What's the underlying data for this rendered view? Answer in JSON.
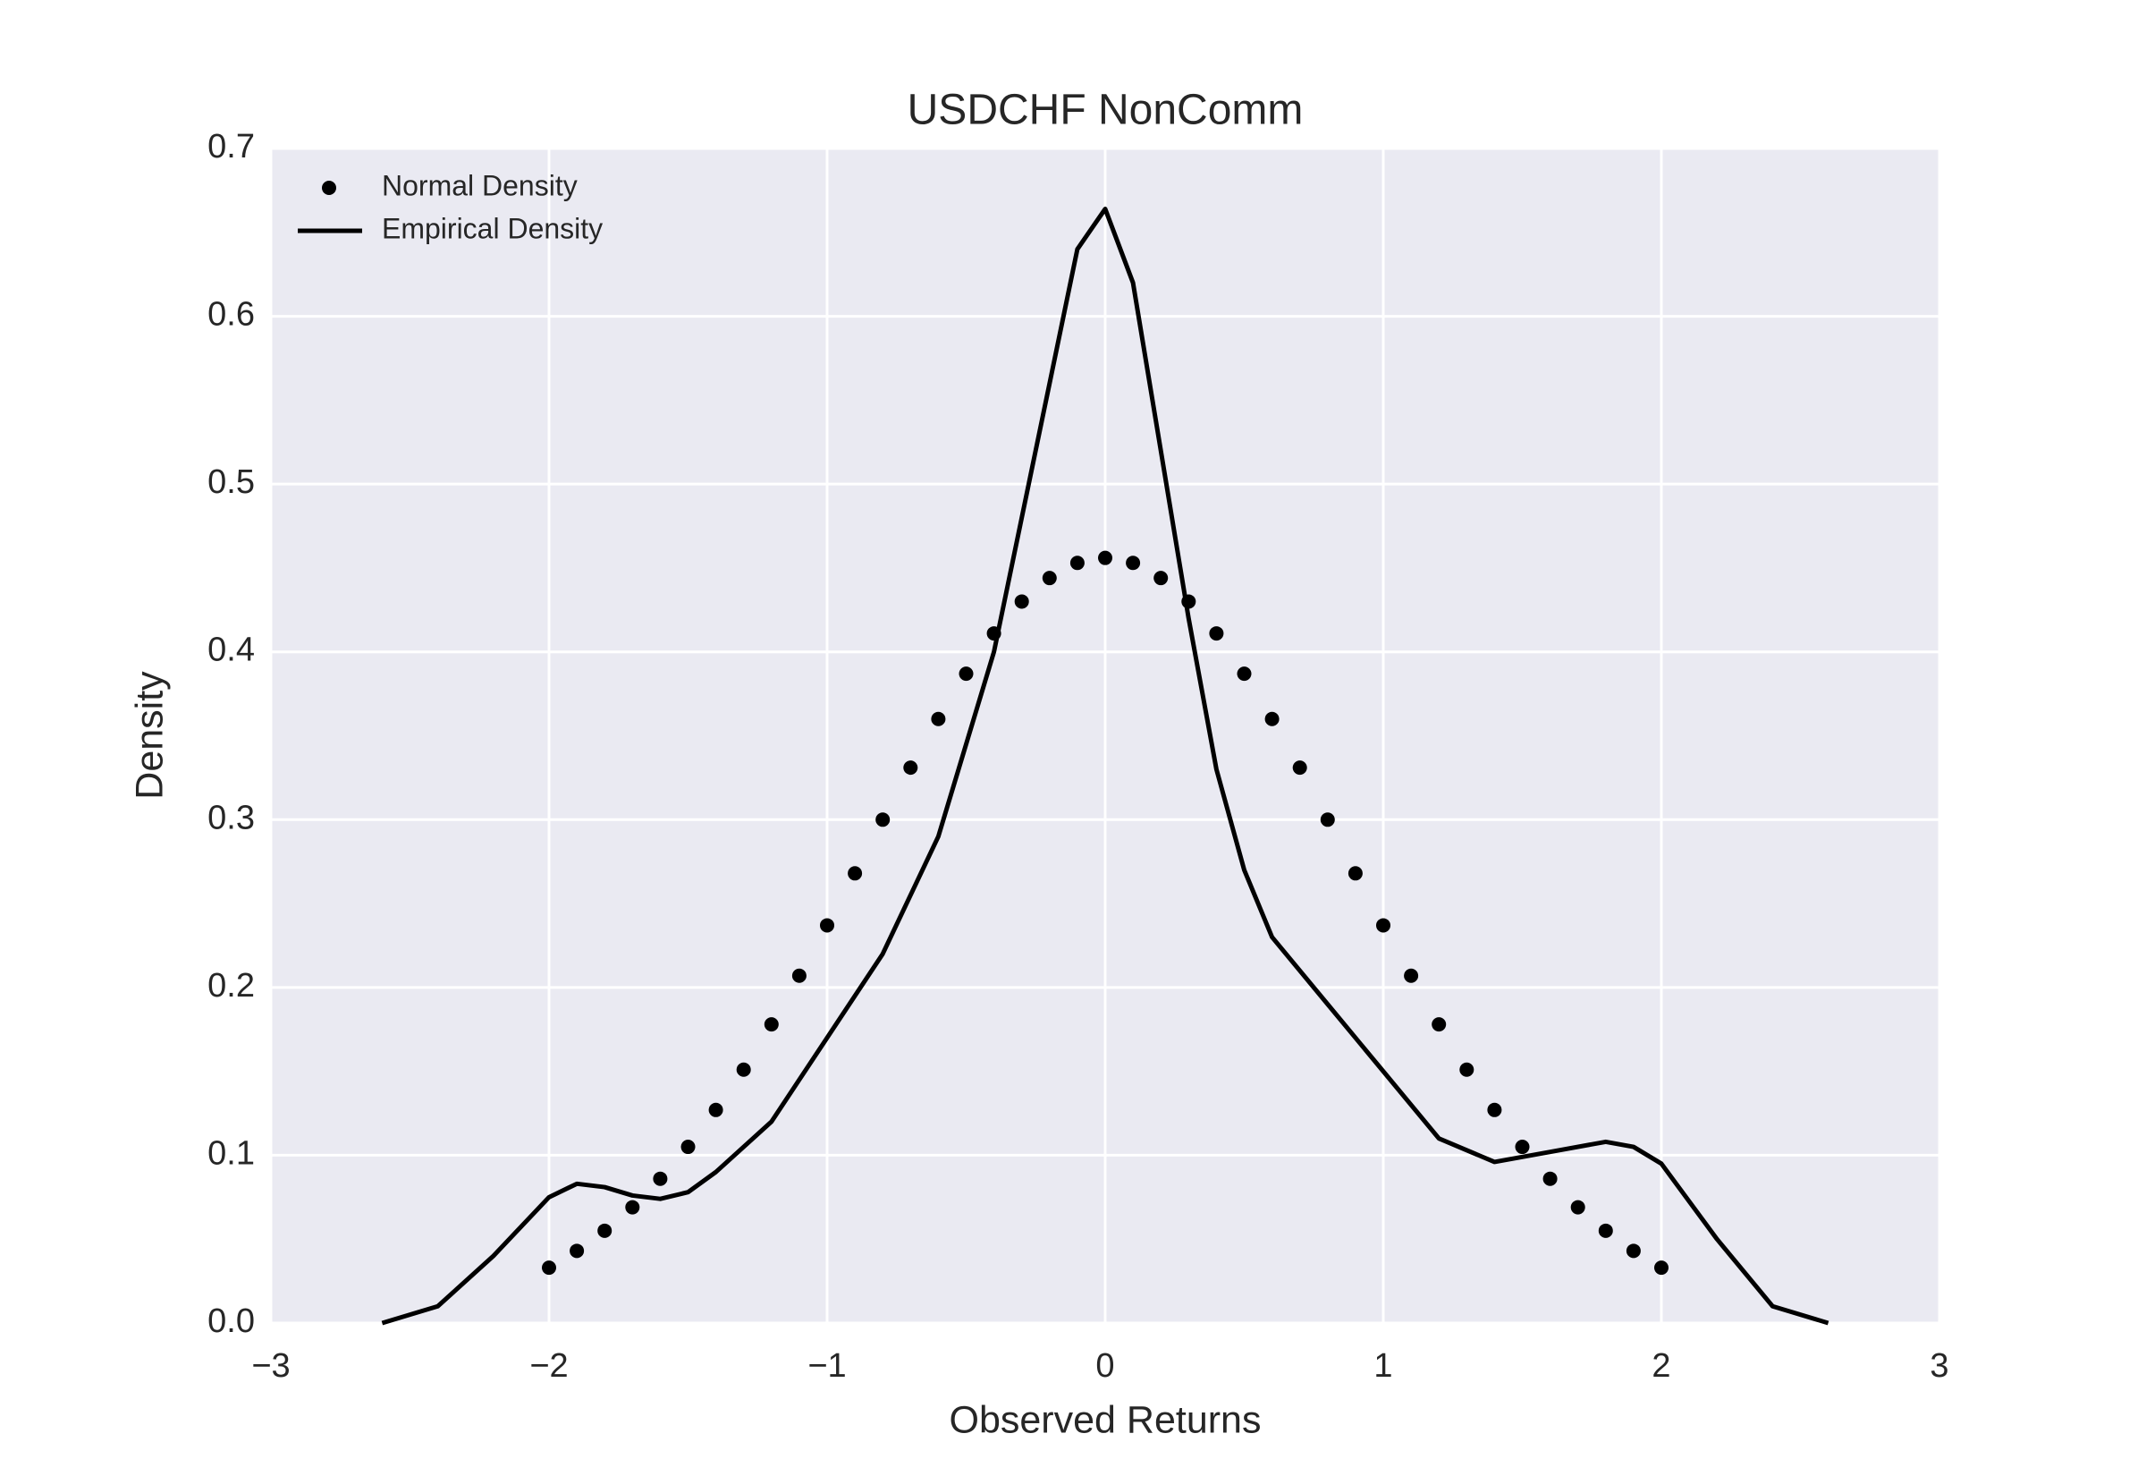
{
  "chart_data": {
    "type": "line",
    "title": "USDCHF NonComm",
    "x_label": "Observed Returns",
    "y_label": "Density",
    "xlim": [
      -3,
      3
    ],
    "ylim": [
      0,
      0.7
    ],
    "xticks": [
      {
        "value": -3,
        "label": "−3"
      },
      {
        "value": -2,
        "label": "−2"
      },
      {
        "value": -1,
        "label": "−1"
      },
      0,
      1,
      2,
      3
    ],
    "yticks": [
      {
        "value": 0,
        "label": "0.0"
      },
      0.1,
      0.2,
      0.3,
      0.4,
      0.5,
      0.6,
      0.7
    ],
    "grid": true,
    "legend": "upper left",
    "background": "#eaeaf2",
    "series": [
      {
        "name": "Normal Density",
        "type": "scatter",
        "color": "#000000",
        "x": [
          -2.0,
          -1.9,
          -1.8,
          -1.7,
          -1.6,
          -1.5,
          -1.4,
          -1.3,
          -1.2,
          -1.1,
          -1.0,
          -0.9,
          -0.8,
          -0.7,
          -0.6,
          -0.5,
          -0.4,
          -0.3,
          -0.2,
          -0.1,
          0.0,
          0.1,
          0.2,
          0.3,
          0.4,
          0.5,
          0.6,
          0.7,
          0.8,
          0.9,
          1.0,
          1.1,
          1.2,
          1.3,
          1.4,
          1.5,
          1.6,
          1.7,
          1.8,
          1.9,
          2.0
        ],
        "values": [
          0.033,
          0.043,
          0.055,
          0.069,
          0.086,
          0.105,
          0.127,
          0.151,
          0.178,
          0.207,
          0.237,
          0.268,
          0.3,
          0.331,
          0.36,
          0.387,
          0.411,
          0.43,
          0.444,
          0.453,
          0.456,
          0.453,
          0.444,
          0.43,
          0.411,
          0.387,
          0.36,
          0.331,
          0.3,
          0.268,
          0.237,
          0.207,
          0.178,
          0.151,
          0.127,
          0.105,
          0.086,
          0.069,
          0.055,
          0.043,
          0.033
        ]
      },
      {
        "name": "Empirical Density",
        "type": "line",
        "color": "#000000",
        "x": [
          -2.6,
          -2.4,
          -2.2,
          -2.0,
          -1.9,
          -1.8,
          -1.7,
          -1.6,
          -1.5,
          -1.4,
          -1.2,
          -1.0,
          -0.8,
          -0.6,
          -0.4,
          -0.2,
          -0.1,
          0.0,
          0.1,
          0.2,
          0.3,
          0.4,
          0.5,
          0.6,
          0.8,
          1.0,
          1.2,
          1.4,
          1.6,
          1.8,
          1.9,
          2.0,
          2.2,
          2.4,
          2.6
        ],
        "values": [
          0.0,
          0.01,
          0.04,
          0.075,
          0.083,
          0.081,
          0.076,
          0.074,
          0.078,
          0.09,
          0.12,
          0.17,
          0.22,
          0.29,
          0.4,
          0.56,
          0.64,
          0.664,
          0.62,
          0.52,
          0.42,
          0.33,
          0.27,
          0.23,
          0.19,
          0.15,
          0.11,
          0.096,
          0.102,
          0.108,
          0.105,
          0.095,
          0.05,
          0.01,
          0.0
        ]
      }
    ]
  }
}
